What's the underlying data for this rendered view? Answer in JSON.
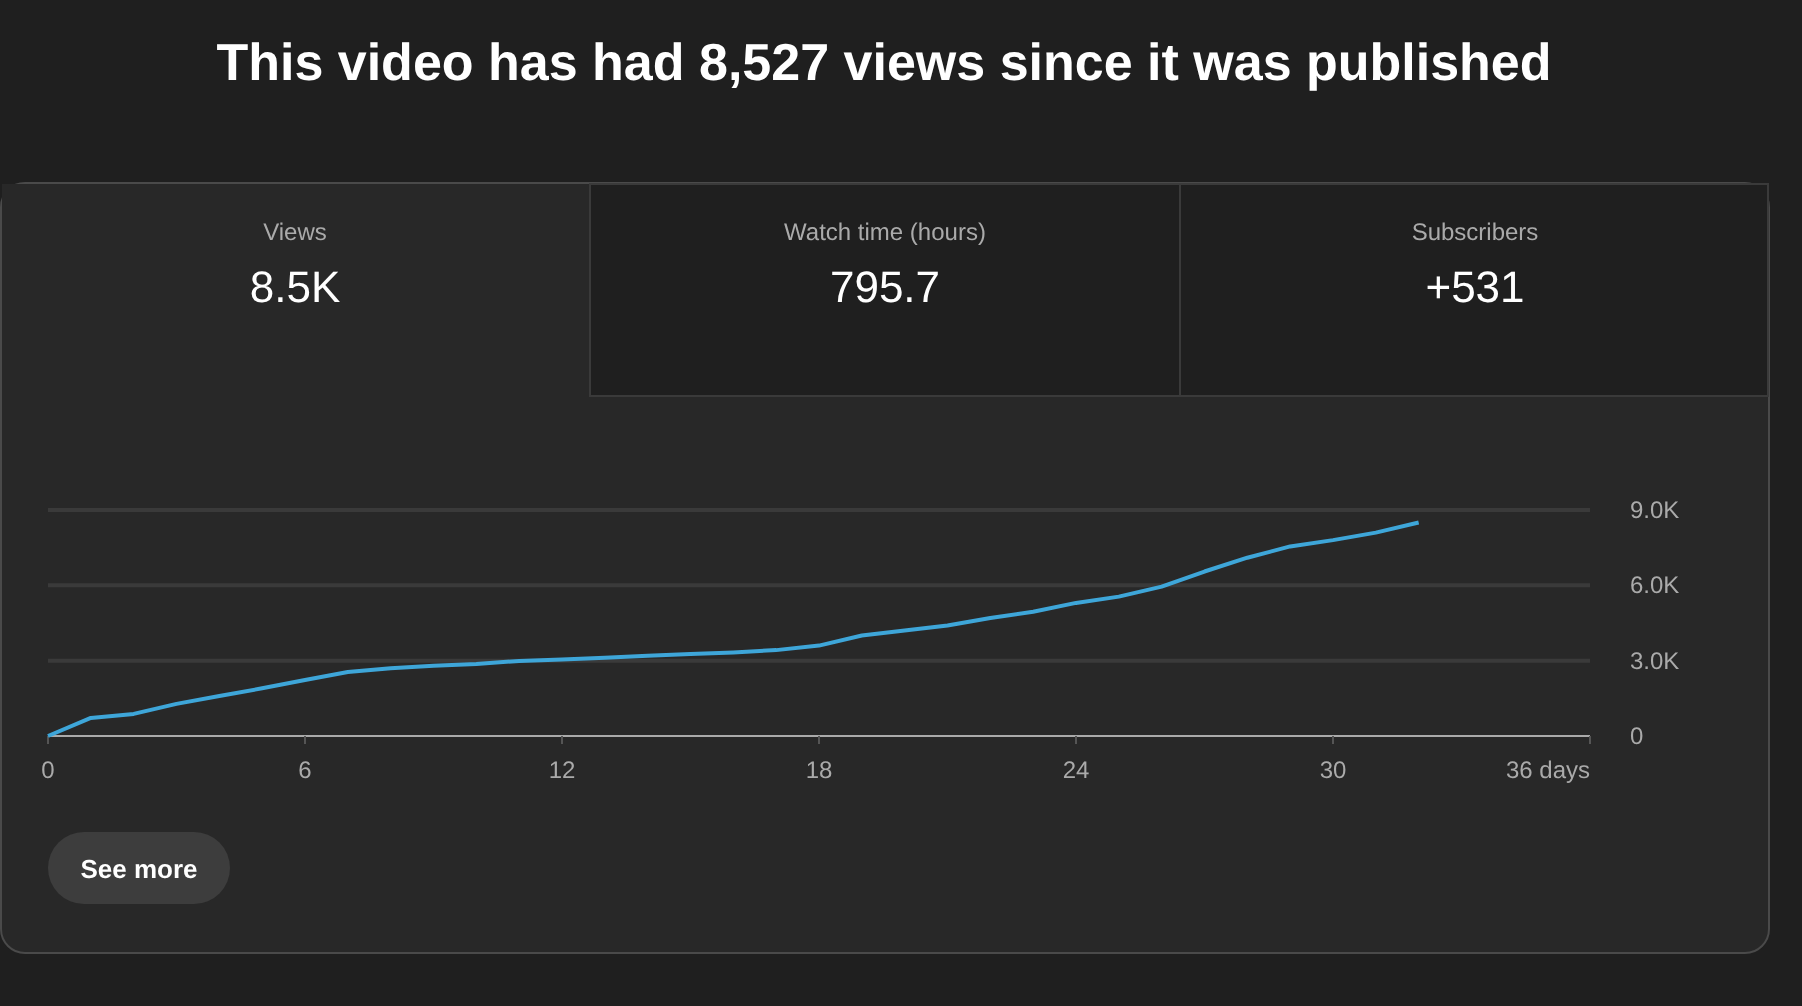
{
  "chart_data": {
    "type": "line",
    "title": "This video has had 8,527 views since it was published",
    "annotations": [
      "Views",
      "8.5K",
      "Watch time (hours)",
      "795.7",
      "Subscribers",
      "+531",
      "See more"
    ],
    "x": [
      0,
      1,
      2,
      3,
      4,
      5,
      6,
      7,
      8,
      9,
      10,
      11,
      12,
      13,
      14,
      15,
      16,
      17,
      18,
      19,
      20,
      21,
      22,
      23,
      24,
      25,
      26,
      27,
      28,
      29,
      30,
      31,
      32
    ],
    "series": [
      {
        "color": "#3ea6d9",
        "values": [
          0,
          720,
          880,
          1280,
          1590,
          1900,
          2230,
          2550,
          2700,
          2800,
          2870,
          2990,
          3050,
          3120,
          3200,
          3270,
          3330,
          3420,
          3600,
          4000,
          4200,
          4400,
          4700,
          4950,
          5300,
          5550,
          5950,
          6550,
          7100,
          7550,
          7800,
          8100,
          8500
        ]
      }
    ],
    "xlim": [
      0,
      36
    ],
    "xticks": [
      0,
      6,
      12,
      18,
      24,
      30,
      {
        "value": 36,
        "label": "36 days"
      }
    ],
    "ylim": [
      0,
      9000
    ],
    "yticks": [
      {
        "value": 0,
        "label": "0"
      },
      {
        "value": 3000,
        "label": "3.0K"
      },
      {
        "value": 6000,
        "label": "6.0K"
      },
      {
        "value": 9000,
        "label": "9.0K"
      }
    ],
    "grid": "y",
    "marker": "none",
    "line_style": "solid"
  }
}
